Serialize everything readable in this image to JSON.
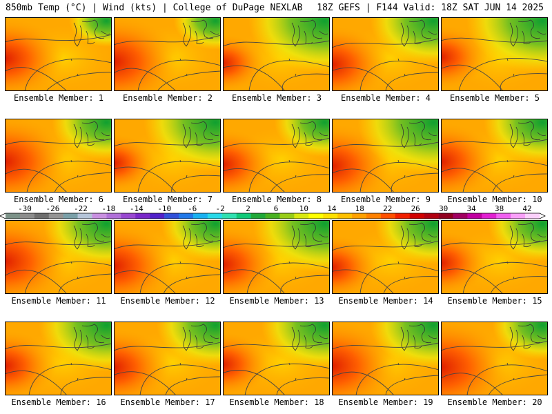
{
  "header": {
    "left": "850mb Temp (°C) | Wind (kts) | College of DuPage NEXLAB",
    "right": "18Z GEFS | F144 Valid: 18Z SAT JUN 14 2025"
  },
  "caption_prefix": "Ensemble Member: ",
  "members": [
    {
      "id": 1,
      "label": "1"
    },
    {
      "id": 2,
      "label": "2"
    },
    {
      "id": 3,
      "label": "3"
    },
    {
      "id": 4,
      "label": "4"
    },
    {
      "id": 5,
      "label": "5"
    },
    {
      "id": 6,
      "label": "6"
    },
    {
      "id": 7,
      "label": "7"
    },
    {
      "id": 8,
      "label": "8"
    },
    {
      "id": 9,
      "label": "9"
    },
    {
      "id": 10,
      "label": "10"
    },
    {
      "id": 11,
      "label": "11"
    },
    {
      "id": 12,
      "label": "12"
    },
    {
      "id": 13,
      "label": "13"
    },
    {
      "id": 14,
      "label": "14"
    },
    {
      "id": 15,
      "label": "15"
    },
    {
      "id": 16,
      "label": "16"
    },
    {
      "id": 17,
      "label": "17"
    },
    {
      "id": 18,
      "label": "18"
    },
    {
      "id": 19,
      "label": "19"
    },
    {
      "id": 20,
      "label": "20"
    }
  ],
  "colorbar": {
    "tick_labels": [
      "-30",
      "-26",
      "-22",
      "-18",
      "-14",
      "-10",
      "-6",
      "-2",
      "2",
      "6",
      "10",
      "14",
      "18",
      "22",
      "26",
      "30",
      "34",
      "38",
      "42"
    ],
    "colors": [
      "#7c9288",
      "#8c8c8c",
      "#6e6e6e",
      "#949494",
      "#7aa0a8",
      "#b4c4d8",
      "#c890e0",
      "#b070d8",
      "#9848d0",
      "#7a28c8",
      "#5020c8",
      "#3050d8",
      "#2078e8",
      "#18b0f0",
      "#28d8e8",
      "#30e0b0",
      "#10c878",
      "#20a838",
      "#48b020",
      "#98cc18",
      "#d8e810",
      "#ffff00",
      "#ffe000",
      "#ffc000",
      "#ffa000",
      "#ff8000",
      "#ff5000",
      "#f02000",
      "#d00000",
      "#b00010",
      "#900020",
      "#a00060",
      "#c000a0",
      "#e020d0",
      "#f060f0",
      "#f8a0f8",
      "#fcd0fc"
    ]
  }
}
